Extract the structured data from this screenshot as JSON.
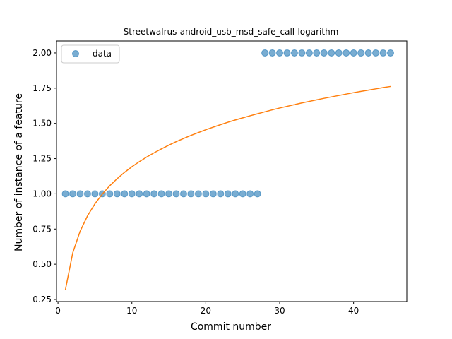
{
  "chart_data": {
    "type": "scatter",
    "title": "Streetwalrus-android_usb_msd_safe_call-logarithm",
    "xlabel": "Commit number",
    "ylabel": "Number of instance of a feature",
    "xlim": [
      -0.2,
      47.2
    ],
    "ylim": [
      0.235,
      2.085
    ],
    "xticks": [
      0,
      10,
      20,
      30,
      40
    ],
    "yticks": [
      0.25,
      0.5,
      0.75,
      1.0,
      1.25,
      1.5,
      1.75,
      2.0
    ],
    "ytick_labels": [
      "0.25",
      "0.50",
      "0.75",
      "1.00",
      "1.25",
      "1.50",
      "1.75",
      "2.00"
    ],
    "grid": false,
    "legend": {
      "placement": "top-left",
      "entries": [
        "data"
      ]
    },
    "series": [
      {
        "name": "data",
        "kind": "scatter",
        "color": "#1f77b4",
        "x": [
          1,
          2,
          3,
          4,
          5,
          6,
          7,
          8,
          9,
          10,
          11,
          12,
          13,
          14,
          15,
          16,
          17,
          18,
          19,
          20,
          21,
          22,
          23,
          24,
          25,
          26,
          27,
          28,
          29,
          30,
          31,
          32,
          33,
          34,
          35,
          36,
          37,
          38,
          39,
          40,
          41,
          42,
          43,
          44,
          45
        ],
        "y": [
          1,
          1,
          1,
          1,
          1,
          1,
          1,
          1,
          1,
          1,
          1,
          1,
          1,
          1,
          1,
          1,
          1,
          1,
          1,
          1,
          1,
          1,
          1,
          1,
          1,
          1,
          1,
          2,
          2,
          2,
          2,
          2,
          2,
          2,
          2,
          2,
          2,
          2,
          2,
          2,
          2,
          2,
          2,
          2,
          2
        ]
      },
      {
        "kind": "line",
        "color": "#ff7f0e",
        "x": [
          1,
          2,
          3,
          4,
          5,
          6,
          7,
          8,
          9,
          10,
          11,
          12,
          13,
          14,
          15,
          16,
          17,
          18,
          19,
          20,
          21,
          22,
          23,
          24,
          25,
          26,
          27,
          28,
          29,
          30,
          31,
          32,
          33,
          34,
          35,
          36,
          37,
          38,
          39,
          40,
          41,
          42,
          43,
          44,
          45
        ],
        "y": [
          0.318,
          0.581,
          0.735,
          0.844,
          0.929,
          0.998,
          1.057,
          1.107,
          1.152,
          1.192,
          1.228,
          1.261,
          1.291,
          1.319,
          1.345,
          1.37,
          1.393,
          1.415,
          1.435,
          1.455,
          1.473,
          1.491,
          1.508,
          1.524,
          1.539,
          1.554,
          1.568,
          1.582,
          1.596,
          1.609,
          1.621,
          1.633,
          1.645,
          1.656,
          1.667,
          1.678,
          1.688,
          1.698,
          1.708,
          1.718,
          1.727,
          1.736,
          1.745,
          1.754,
          1.762
        ]
      }
    ]
  }
}
